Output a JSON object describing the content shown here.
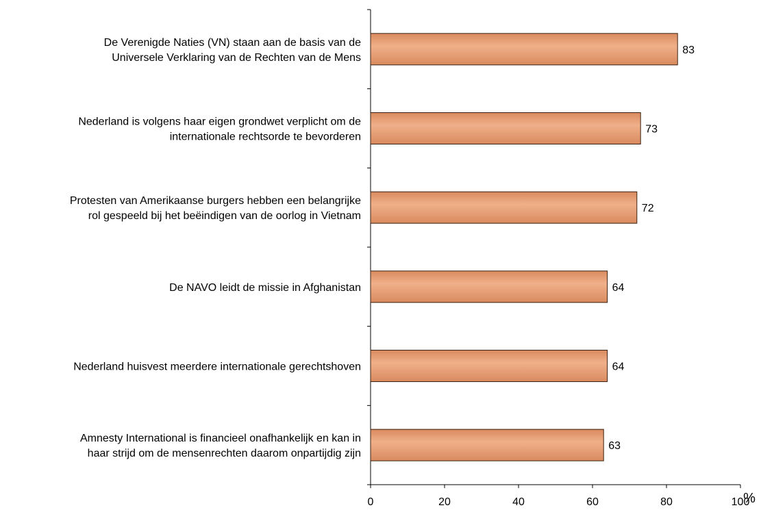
{
  "chart_data": {
    "type": "bar",
    "orientation": "horizontal",
    "categories": [
      [
        "De Verenigde Naties (VN) staan aan de basis van de",
        "Universele Verklaring van de Rechten van de Mens"
      ],
      [
        "Nederland is volgens haar eigen grondwet verplicht om de",
        "internationale rechtsorde te bevorderen"
      ],
      [
        "Protesten van Amerikaanse burgers hebben een belangrijke",
        "rol gespeeld bij het beëindigen van de oorlog in Vietnam"
      ],
      [
        "De NAVO leidt de missie in Afghanistan"
      ],
      [
        "Nederland huisvest meerdere internationale gerechtshoven"
      ],
      [
        "Amnesty International is financieel onafhankelijk en kan in",
        "haar strijd om de mensenrechten daarom onpartijdig zijn"
      ]
    ],
    "values": [
      83,
      73,
      72,
      64,
      64,
      63
    ],
    "xlim": [
      0,
      100
    ],
    "xticks": [
      "0",
      "20",
      "40",
      "60",
      "80",
      "100"
    ],
    "unit": "%",
    "grid": false,
    "legend": "none",
    "bar_color": "#d98a5e",
    "bar_highlight": "#f0b08a",
    "bar_outline": "#3a2010"
  }
}
